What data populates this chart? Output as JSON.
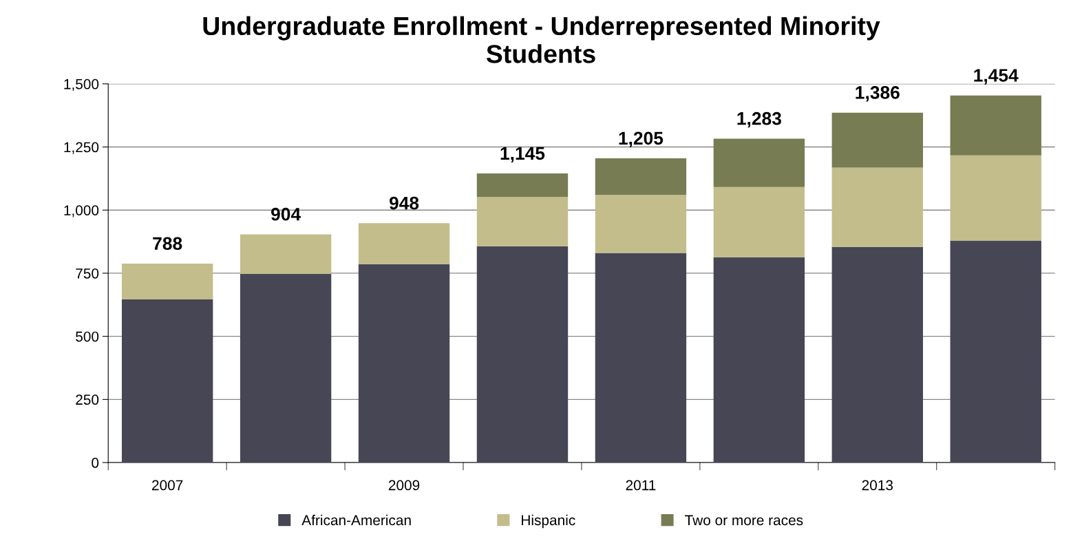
{
  "chart_data": {
    "type": "bar",
    "title": "Undergraduate Enrollment - Underrepresented Minority\nStudents",
    "stacked": true,
    "categories": [
      "2007",
      null,
      "2009",
      null,
      "2011",
      null,
      "2013",
      null
    ],
    "series": [
      {
        "name": "African-American",
        "color": "#474655",
        "values": [
          646,
          747,
          786,
          857,
          830,
          813,
          854,
          879
        ]
      },
      {
        "name": "Hispanic",
        "color": "#c3bd8c",
        "values": [
          142,
          157,
          162,
          195,
          230,
          278,
          314,
          338
        ]
      },
      {
        "name": "Two or more races",
        "color": "#777c53",
        "values": [
          null,
          null,
          null,
          93,
          145,
          192,
          218,
          237
        ]
      }
    ],
    "totals": [
      "788",
      "904",
      "948",
      "1,145",
      "1,205",
      "1,283",
      "1,386",
      "1,454"
    ],
    "ylim": [
      0,
      1500
    ],
    "yticks": [
      0,
      250,
      500,
      750,
      {
        "value": 1000,
        "label": "1,000"
      },
      {
        "value": 1250,
        "label": "1,250"
      },
      {
        "value": 1500,
        "label": "1,500"
      }
    ],
    "grid": "y",
    "legend": "bottom"
  }
}
